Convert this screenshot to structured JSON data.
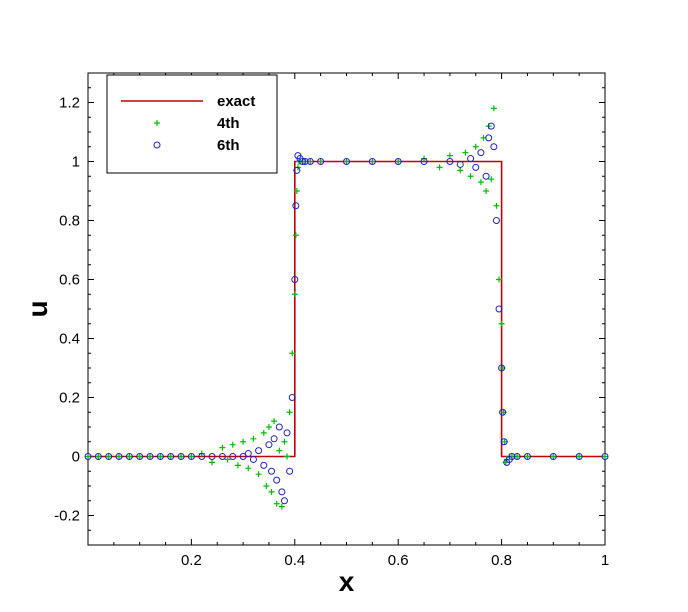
{
  "chart_data": {
    "type": "scatter",
    "title": "",
    "xlabel": "x",
    "ylabel": "u",
    "xlim": [
      0,
      1
    ],
    "ylim": [
      -0.3,
      1.3
    ],
    "x_ticks": [
      0.2,
      0.4,
      0.6,
      0.8,
      1
    ],
    "x_tick_labels": [
      "0.2",
      "0.4",
      "0.6",
      "0.8",
      "1"
    ],
    "y_ticks": [
      -0.2,
      0,
      0.2,
      0.4,
      0.6,
      0.8,
      1,
      1.2
    ],
    "y_tick_labels": [
      "-0.2",
      "0",
      "0.2",
      "0.4",
      "0.6",
      "0.8",
      "1",
      "1.2"
    ],
    "grid": false,
    "legend_position": "top-left",
    "series": [
      {
        "name": "exact",
        "kind": "line",
        "color": "#c00000",
        "x": [
          0,
          0.4,
          0.4,
          0.8,
          0.8,
          1
        ],
        "y": [
          0,
          0,
          1,
          1,
          0,
          0
        ]
      },
      {
        "name": "4th",
        "kind": "marker-plus",
        "color": "#00c000",
        "x": [
          0.0,
          0.02,
          0.04,
          0.06,
          0.08,
          0.1,
          0.12,
          0.14,
          0.16,
          0.18,
          0.2,
          0.22,
          0.24,
          0.26,
          0.27,
          0.28,
          0.29,
          0.3,
          0.31,
          0.32,
          0.33,
          0.34,
          0.345,
          0.35,
          0.355,
          0.36,
          0.365,
          0.37,
          0.375,
          0.38,
          0.385,
          0.39,
          0.395,
          0.4,
          0.402,
          0.404,
          0.406,
          0.408,
          0.41,
          0.415,
          0.42,
          0.43,
          0.45,
          0.5,
          0.55,
          0.6,
          0.65,
          0.68,
          0.7,
          0.72,
          0.73,
          0.74,
          0.75,
          0.76,
          0.765,
          0.77,
          0.775,
          0.78,
          0.785,
          0.79,
          0.795,
          0.8,
          0.802,
          0.804,
          0.806,
          0.808,
          0.81,
          0.815,
          0.82,
          0.83,
          0.85,
          0.9,
          0.95,
          1.0
        ],
        "y": [
          0,
          0,
          0,
          0,
          0,
          0,
          0,
          0,
          0,
          0,
          0,
          0.01,
          -0.02,
          0.03,
          -0.01,
          0.04,
          -0.03,
          0.05,
          -0.04,
          0.06,
          -0.06,
          0.08,
          -0.1,
          0.1,
          -0.12,
          0.12,
          -0.16,
          0.02,
          -0.17,
          0.05,
          0.0,
          0.15,
          0.35,
          0.55,
          0.75,
          0.9,
          0.98,
          1.0,
          1.0,
          1.0,
          1.0,
          1.0,
          1.0,
          1.0,
          1.0,
          1.0,
          1.01,
          0.98,
          1.02,
          0.97,
          1.03,
          0.95,
          1.05,
          0.93,
          1.08,
          0.9,
          1.12,
          0.94,
          1.18,
          0.85,
          0.6,
          0.45,
          0.3,
          0.15,
          0.05,
          -0.02,
          -0.01,
          0.0,
          0.0,
          0,
          0,
          0,
          0,
          0
        ]
      },
      {
        "name": "6th",
        "kind": "marker-circle",
        "color": "#2020d0",
        "x": [
          0.0,
          0.02,
          0.04,
          0.06,
          0.08,
          0.1,
          0.12,
          0.14,
          0.16,
          0.18,
          0.2,
          0.22,
          0.24,
          0.26,
          0.28,
          0.3,
          0.31,
          0.32,
          0.33,
          0.34,
          0.35,
          0.355,
          0.36,
          0.365,
          0.37,
          0.375,
          0.38,
          0.385,
          0.39,
          0.395,
          0.4,
          0.402,
          0.404,
          0.406,
          0.41,
          0.415,
          0.42,
          0.43,
          0.45,
          0.5,
          0.55,
          0.6,
          0.65,
          0.7,
          0.72,
          0.74,
          0.75,
          0.76,
          0.77,
          0.775,
          0.78,
          0.785,
          0.79,
          0.795,
          0.8,
          0.802,
          0.805,
          0.81,
          0.815,
          0.82,
          0.83,
          0.85,
          0.9,
          0.95,
          1.0
        ],
        "y": [
          0,
          0,
          0,
          0,
          0,
          0,
          0,
          0,
          0,
          0,
          0,
          0,
          0,
          0,
          0,
          0,
          0.01,
          -0.01,
          0.02,
          -0.03,
          0.04,
          -0.05,
          0.06,
          -0.08,
          0.1,
          -0.12,
          -0.15,
          0.08,
          -0.05,
          0.2,
          0.6,
          0.85,
          0.97,
          1.02,
          1.01,
          1.0,
          1.0,
          1.0,
          1.0,
          1.0,
          1.0,
          1.0,
          1.0,
          1.0,
          0.99,
          1.01,
          0.98,
          1.03,
          0.95,
          1.08,
          1.12,
          1.05,
          0.8,
          0.5,
          0.3,
          0.15,
          0.05,
          -0.02,
          -0.01,
          0.0,
          0.0,
          0,
          0,
          0,
          0
        ]
      }
    ]
  }
}
